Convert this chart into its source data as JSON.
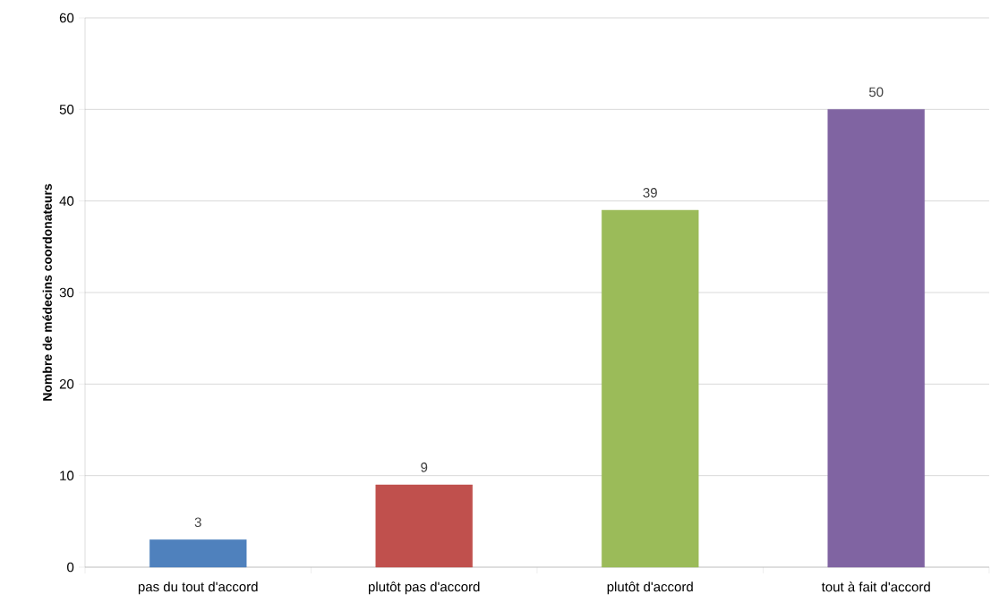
{
  "chart_data": {
    "type": "bar",
    "ylabel": "Nombre de médecins coordonateurs",
    "categories": [
      "pas du tout d'accord",
      "plutôt pas d'accord",
      "plutôt d'accord",
      "tout à fait d'accord"
    ],
    "values": [
      3,
      9,
      39,
      50
    ],
    "colors": [
      "#4f81bd",
      "#c0504d",
      "#9bbb59",
      "#8064a2"
    ],
    "ylim": [
      0,
      60
    ],
    "yticks": [
      0,
      10,
      20,
      30,
      40,
      50,
      60
    ],
    "grid": "y",
    "data_labels": true
  }
}
